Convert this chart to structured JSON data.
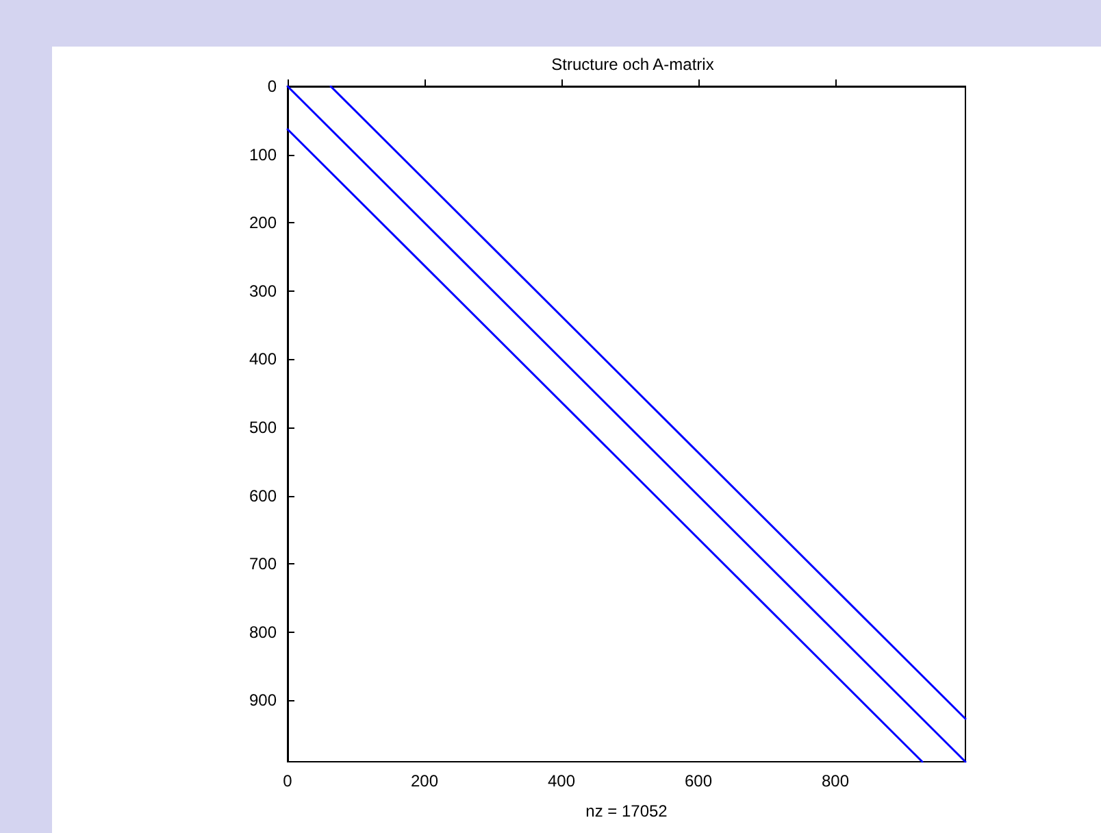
{
  "chart_data": {
    "type": "line",
    "title": "Structure och A-matrix",
    "xlabel": "nz = 17052",
    "xlim": [
      0,
      990
    ],
    "ylim": [
      990,
      0
    ],
    "xticks": [
      0,
      200,
      400,
      600,
      800
    ],
    "yticks": [
      0,
      100,
      200,
      300,
      400,
      500,
      600,
      700,
      800,
      900
    ],
    "series": [
      {
        "color": "#0000ff",
        "x": [
          63,
          990
        ],
        "values": [
          0,
          927
        ]
      },
      {
        "color": "#0000ff",
        "x": [
          0,
          990
        ],
        "values": [
          0,
          990
        ]
      },
      {
        "color": "#0000ff",
        "x": [
          0,
          927
        ],
        "values": [
          63,
          990
        ]
      }
    ],
    "grid": false,
    "marker": "none",
    "line_style": "solid"
  }
}
